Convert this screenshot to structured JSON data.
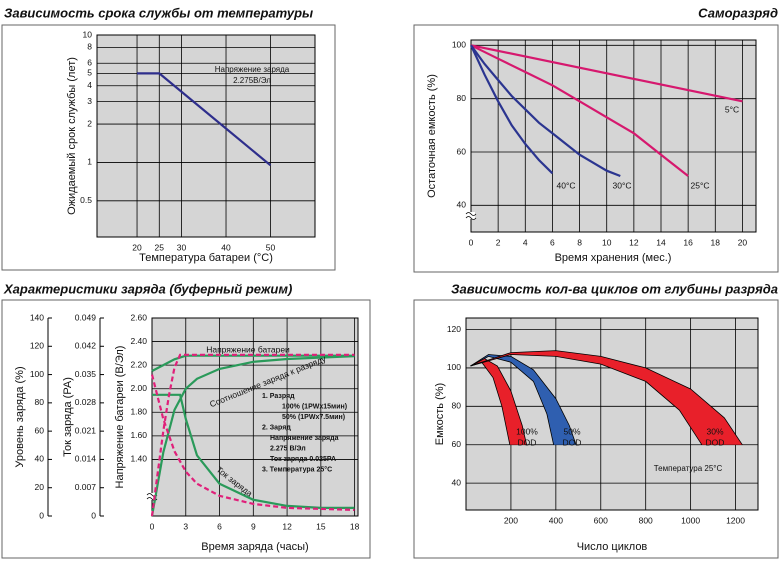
{
  "chart_data": [
    {
      "type": "line",
      "title": "Зависимость срока службы от температуры",
      "x_label": "Температура батареи (°C)",
      "y_label": "Ожидаемый срок службы (лет)",
      "xlim": [
        11,
        60
      ],
      "xticks": [
        20,
        25,
        30,
        40,
        50
      ],
      "ylim": [
        0.26,
        10
      ],
      "yticks": [
        10,
        8,
        6,
        5,
        4,
        3,
        2,
        1,
        0.5
      ],
      "ylog": true,
      "grid": true,
      "annotation": [
        "Напряжение заряда",
        "2.275В/Эл"
      ],
      "series": [
        {
          "color": "#2e2e8c",
          "x": [
            20,
            25,
            50
          ],
          "values": [
            5,
            5,
            0.95
          ]
        }
      ]
    },
    {
      "type": "line",
      "title": "Саморазряд",
      "x_label": "Время хранения (мес.)",
      "y_label": "Остаточная емкость (%)",
      "xlim": [
        0,
        21
      ],
      "xticks": [
        0,
        2,
        4,
        6,
        8,
        10,
        12,
        14,
        16,
        18,
        20
      ],
      "ylim": [
        30,
        102
      ],
      "yticks": [
        40,
        60,
        80,
        100
      ],
      "grid": true,
      "series": [
        {
          "name": "5°C",
          "color": "#d6186e",
          "x": [
            0,
            20
          ],
          "values": [
            100,
            79
          ]
        },
        {
          "name": "25°C",
          "color": "#d6186e",
          "x": [
            0,
            2,
            4,
            6,
            8,
            10,
            12,
            14,
            16
          ],
          "values": [
            100,
            95,
            90,
            85,
            79,
            73,
            67,
            59,
            51
          ]
        },
        {
          "name": "30°C",
          "color": "#2b3590",
          "x": [
            0,
            1,
            2,
            3,
            4,
            5,
            6,
            7,
            8,
            9,
            10,
            11
          ],
          "values": [
            100,
            93,
            87,
            81,
            76,
            71,
            67,
            63,
            59,
            56,
            53,
            51
          ]
        },
        {
          "name": "40°C",
          "color": "#2b3590",
          "x": [
            0,
            1,
            2,
            3,
            4,
            5,
            6
          ],
          "values": [
            100,
            89,
            79,
            70,
            63,
            57,
            52
          ]
        }
      ]
    },
    {
      "type": "line",
      "title": "Характеристики заряда (буферный режим)",
      "x_label": "Время заряда (часы)",
      "y_label": "Напряжение батареи (В/Эл)",
      "y2_label": "Уровень заряда (%)",
      "y3_label": "Ток заряда (PA)",
      "xlim": [
        0,
        18.3
      ],
      "xticks": [
        0,
        3,
        6,
        9,
        12,
        15,
        18
      ],
      "ylim": [
        0.92,
        2.6
      ],
      "yticks": [
        {
          "value": 2.6,
          "label": "2.60"
        },
        {
          "value": 2.4,
          "label": "2.40"
        },
        {
          "value": 2.2,
          "label": "2.20"
        },
        {
          "value": 2,
          "label": "2.00"
        },
        {
          "value": 1.8,
          "label": "1.80"
        },
        {
          "value": 1.6,
          "label": "1.60"
        },
        {
          "value": 1.4,
          "label": "1.40"
        }
      ],
      "y2lim": [
        0,
        140
      ],
      "y2ticks": [
        140,
        120,
        100,
        80,
        60,
        40,
        20,
        0
      ],
      "y3lim": [
        0,
        0.049
      ],
      "y3ticks": [
        0.049,
        0.042,
        0.035,
        0.028,
        0.021,
        0.014,
        0.007,
        0
      ],
      "grid": true,
      "annotation": [
        "1. Разряд",
        "100% (1PWx15мин)",
        "50% (1PWx7.5мин)",
        "2. Заряд",
        "Напряжение заряда",
        "2.275 В/Эл",
        "Ток заряда 0.025PA",
        "3. Температура 25°C"
      ],
      "series": [
        {
          "name": "Напряжение батареи",
          "color": "#2a9a5a",
          "axis": "y",
          "x": [
            0,
            1,
            2,
            3,
            6,
            18
          ],
          "values": [
            2.15,
            2.2,
            2.25,
            2.28,
            2.28,
            2.28
          ]
        },
        {
          "name": "Соотношение заряда к разряду",
          "color": "#2a9a5a",
          "axis": "y2",
          "x": [
            0,
            1,
            2,
            3,
            4,
            6,
            9,
            12,
            18
          ],
          "values": [
            0,
            45,
            75,
            90,
            97,
            104,
            109,
            111,
            113
          ]
        },
        {
          "name": "Ток заряда",
          "color": "#2a9a5a",
          "axis": "y3",
          "x": [
            0,
            2.5,
            3,
            4,
            6,
            9,
            12,
            15,
            18
          ],
          "values": [
            0.03,
            0.03,
            0.024,
            0.015,
            0.008,
            0.004,
            0.0025,
            0.002,
            0.002
          ]
        },
        {
          "color": "#e0207a",
          "line_style": "dashed",
          "axis": "y2",
          "x": [
            0,
            0.5,
            1,
            1.5,
            2,
            2.5,
            18
          ],
          "values": [
            0,
            30,
            60,
            85,
            105,
            114,
            114
          ]
        },
        {
          "color": "#e0207a",
          "line_style": "dashed",
          "axis": "y3",
          "x": [
            0,
            1,
            2,
            3,
            4,
            6,
            9,
            12,
            18
          ],
          "values": [
            0.035,
            0.024,
            0.016,
            0.011,
            0.008,
            0.005,
            0.003,
            0.002,
            0.0015
          ]
        }
      ]
    },
    {
      "type": "area",
      "title": "Зависимость кол-ва циклов от глубины разряда",
      "x_label": "Число циклов",
      "y_label": "Емкость (%)",
      "xlim": [
        0,
        1300
      ],
      "xticks": [
        200,
        400,
        600,
        800,
        1000,
        1200
      ],
      "ylim": [
        26,
        126
      ],
      "yticks": [
        40,
        60,
        80,
        100,
        120
      ],
      "grid": true,
      "annotation": [
        "Температура 25°C"
      ],
      "series": [
        {
          "label": [
            "100%",
            "DOD"
          ],
          "color": "#e8202a",
          "x": [
            20,
            80,
            140,
            200,
            250,
            270
          ],
          "values": [
            101,
            105,
            101,
            88,
            70,
            60
          ],
          "x_lower": [
            20,
            70,
            120,
            160,
            195
          ],
          "values_lower": [
            101,
            103,
            95,
            80,
            60
          ]
        },
        {
          "label": [
            "50%",
            "DOD"
          ],
          "color": "#2f5fb0",
          "x": [
            20,
            100,
            200,
            300,
            400,
            460,
            490
          ],
          "values": [
            101,
            107,
            106,
            99,
            84,
            70,
            60
          ],
          "x_lower": [
            20,
            100,
            200,
            300,
            360,
            390
          ],
          "values_lower": [
            101,
            106,
            103,
            93,
            76,
            60
          ]
        },
        {
          "label": [
            "30%",
            "DOD"
          ],
          "color": "#e8202a",
          "x": [
            20,
            200,
            400,
            600,
            800,
            1000,
            1150,
            1230
          ],
          "values": [
            101,
            108,
            109,
            106,
            100,
            89,
            74,
            60
          ],
          "x_lower": [
            20,
            200,
            400,
            600,
            800,
            950,
            1050
          ],
          "values_lower": [
            101,
            107,
            106,
            102,
            93,
            78,
            60
          ]
        }
      ]
    }
  ]
}
